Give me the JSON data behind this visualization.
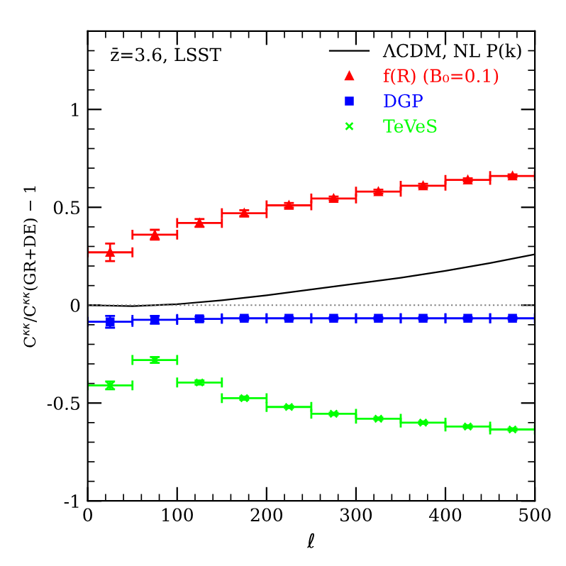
{
  "chart_data": {
    "type": "scatter",
    "xlabel": "ℓ",
    "ylabel": "C$^{κκ}$/C$^{κκ}$(GR+DE) − 1",
    "annotations": [
      "z̄=3.6, LSST"
    ],
    "x": [
      25,
      75,
      125,
      175,
      225,
      275,
      325,
      375,
      425,
      475
    ],
    "series": [
      {
        "name": "ΛCDM, NL P(k)",
        "type": "line",
        "color": "#000000",
        "marker": "none",
        "line_style": "solid",
        "x": [
          0,
          50,
          100,
          150,
          200,
          250,
          300,
          350,
          400,
          450,
          500
        ],
        "values": [
          0,
          -0.005,
          0.005,
          0.025,
          0.05,
          0.08,
          0.11,
          0.14,
          0.175,
          0.215,
          0.26
        ]
      },
      {
        "name": "f(R) (B₀=0.1)",
        "color": "#ff0000",
        "marker": "triangle",
        "values": [
          0.27,
          0.36,
          0.42,
          0.47,
          0.51,
          0.545,
          0.58,
          0.61,
          0.64,
          0.66
        ],
        "errors": [
          0.045,
          0.025,
          0.02,
          0.015,
          0.012,
          0.01,
          0.01,
          0.01,
          0.008,
          0.008
        ],
        "xerrors": [
          25,
          25,
          25,
          25,
          25,
          25,
          25,
          25,
          25,
          25
        ]
      },
      {
        "name": "DGP",
        "color": "#0000ff",
        "marker": "square",
        "values": [
          -0.085,
          -0.075,
          -0.07,
          -0.067,
          -0.067,
          -0.067,
          -0.067,
          -0.067,
          -0.067,
          -0.067
        ],
        "errors": [
          0.03,
          0.02,
          0.012,
          0.008,
          0.006,
          0.006,
          0.006,
          0.006,
          0.006,
          0.006
        ],
        "xerrors": [
          25,
          25,
          25,
          25,
          25,
          25,
          25,
          25,
          25,
          25
        ]
      },
      {
        "name": "TeVeS",
        "color": "#00ff00",
        "marker": "cross",
        "values": [
          -0.41,
          -0.28,
          -0.395,
          -0.475,
          -0.52,
          -0.555,
          -0.58,
          -0.6,
          -0.62,
          -0.635
        ],
        "errors": [
          0.02,
          0.015,
          0.01,
          0.008,
          0.006,
          0.006,
          0.006,
          0.006,
          0.006,
          0.006
        ],
        "xerrors": [
          25,
          25,
          25,
          25,
          25,
          25,
          25,
          25,
          25,
          25
        ]
      }
    ],
    "ref_lines": [
      {
        "axis": "y",
        "value": 0,
        "color": "#808080",
        "line_style": "dotted"
      }
    ],
    "xlim": [
      0,
      500
    ],
    "xticks": [
      0,
      100,
      200,
      300,
      400,
      500
    ],
    "ylim": [
      -1,
      1.4
    ],
    "yticks": [
      -1,
      -0.5,
      0,
      0.5,
      1
    ],
    "grid": false,
    "legend": "top right"
  }
}
